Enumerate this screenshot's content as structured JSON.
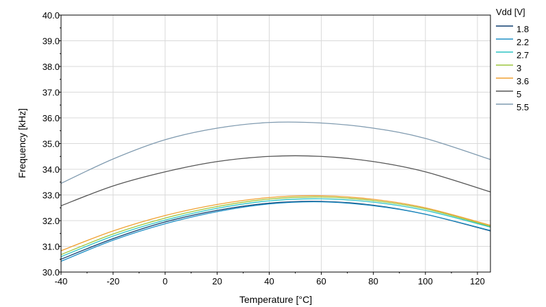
{
  "chart_data": {
    "type": "line",
    "xlabel": "Temperature [°C]",
    "ylabel": "Frequency [kHz]",
    "xlim": [
      -40,
      125
    ],
    "ylim": [
      30.0,
      40.0
    ],
    "x_ticks": [
      -40,
      -20,
      0,
      20,
      40,
      60,
      80,
      100,
      120
    ],
    "x_tick_labels": [
      "-40",
      "-20",
      "0",
      "20",
      "40",
      "60",
      "80",
      "100",
      "120"
    ],
    "y_ticks": [
      30,
      31,
      32,
      33,
      34,
      35,
      36,
      37,
      38,
      39,
      40
    ],
    "y_tick_labels": [
      "30.0",
      "31.0",
      "32.0",
      "33.0",
      "34.0",
      "35.0",
      "36.0",
      "37.0",
      "38.0",
      "39.0",
      "40.0"
    ],
    "grid": true,
    "legend": {
      "title": "Vdd [V]",
      "placement": "right"
    },
    "x": [
      -40,
      -20,
      0,
      20,
      40,
      60,
      80,
      100,
      125
    ],
    "series": [
      {
        "name": "1.8",
        "color": "#0b3c6e",
        "values": [
          30.5,
          31.3,
          31.95,
          32.4,
          32.68,
          32.75,
          32.6,
          32.25,
          31.6
        ]
      },
      {
        "name": "2.2",
        "color": "#1f8fc6",
        "values": [
          30.42,
          31.24,
          31.88,
          32.35,
          32.65,
          32.73,
          32.58,
          32.25,
          31.62
        ]
      },
      {
        "name": "2.7",
        "color": "#2cc3c3",
        "values": [
          30.6,
          31.4,
          32.02,
          32.48,
          32.77,
          32.85,
          32.72,
          32.4,
          31.75
        ]
      },
      {
        "name": "3",
        "color": "#9bc53d",
        "values": [
          30.68,
          31.48,
          32.1,
          32.55,
          32.84,
          32.92,
          32.78,
          32.46,
          31.78
        ]
      },
      {
        "name": "3.6",
        "color": "#f0a030",
        "values": [
          30.83,
          31.6,
          32.2,
          32.63,
          32.9,
          32.97,
          32.83,
          32.5,
          31.82
        ]
      },
      {
        "name": "5",
        "color": "#555555",
        "values": [
          32.58,
          33.35,
          33.9,
          34.3,
          34.5,
          34.5,
          34.3,
          33.9,
          33.12
        ]
      },
      {
        "name": "5.5",
        "color": "#7f9aaf",
        "values": [
          33.45,
          34.4,
          35.15,
          35.6,
          35.82,
          35.8,
          35.6,
          35.2,
          34.38
        ]
      }
    ]
  }
}
